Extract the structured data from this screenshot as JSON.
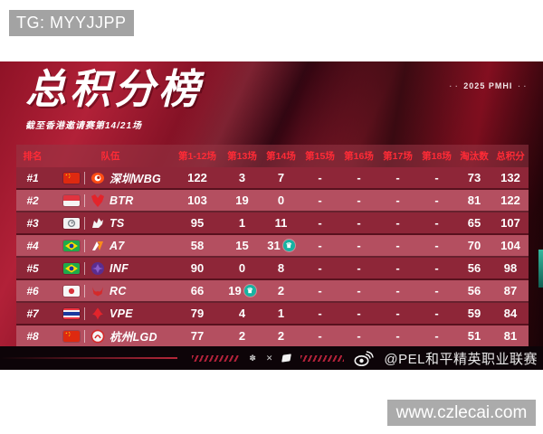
{
  "watermarks": {
    "tg": "TG: MYYJJPP",
    "site": "www.czlecai.com",
    "weibo_handle": "@PEL和平精英职业联赛"
  },
  "header": {
    "title": "总积分榜",
    "subtitle": "截至香港邀请赛第14/21场",
    "event_tag": "2025 PMHI"
  },
  "table": {
    "columns": [
      "排名",
      "队伍",
      "第1-12场",
      "第13场",
      "第14场",
      "第15场",
      "第16场",
      "第17场",
      "第18场",
      "淘汰数",
      "总积分"
    ],
    "rows": [
      {
        "rank": "#1",
        "flag": "cn",
        "logo": "wbg",
        "team": "深圳WBG",
        "scores": [
          "122",
          "3",
          "7",
          "-",
          "-",
          "-",
          "-"
        ],
        "kills": "73",
        "total": "132",
        "badge_index": null
      },
      {
        "rank": "#2",
        "flag": "id",
        "logo": "btr",
        "team": "BTR",
        "scores": [
          "103",
          "19",
          "0",
          "-",
          "-",
          "-",
          "-"
        ],
        "kills": "81",
        "total": "122",
        "badge_index": null
      },
      {
        "rank": "#3",
        "flag": "ts",
        "logo": "ts",
        "team": "TS",
        "scores": [
          "95",
          "1",
          "11",
          "-",
          "-",
          "-",
          "-"
        ],
        "kills": "65",
        "total": "107",
        "badge_index": null
      },
      {
        "rank": "#4",
        "flag": "br",
        "logo": "a7",
        "team": "A7",
        "scores": [
          "58",
          "15",
          "31",
          "-",
          "-",
          "-",
          "-"
        ],
        "kills": "70",
        "total": "104",
        "badge_index": 2
      },
      {
        "rank": "#5",
        "flag": "br",
        "logo": "inf",
        "team": "INF",
        "scores": [
          "90",
          "0",
          "8",
          "-",
          "-",
          "-",
          "-"
        ],
        "kills": "56",
        "total": "98",
        "badge_index": null
      },
      {
        "rank": "#6",
        "flag": "jp",
        "logo": "rc",
        "team": "RC",
        "scores": [
          "66",
          "19",
          "2",
          "-",
          "-",
          "-",
          "-"
        ],
        "kills": "56",
        "total": "87",
        "badge_index": 1
      },
      {
        "rank": "#7",
        "flag": "th",
        "logo": "vpe",
        "team": "VPE",
        "scores": [
          "79",
          "4",
          "1",
          "-",
          "-",
          "-",
          "-"
        ],
        "kills": "59",
        "total": "84",
        "badge_index": null
      },
      {
        "rank": "#8",
        "flag": "cn",
        "logo": "lgd",
        "team": "杭州LGD",
        "scores": [
          "77",
          "2",
          "2",
          "-",
          "-",
          "-",
          "-"
        ],
        "kills": "51",
        "total": "81",
        "badge_index": null
      }
    ],
    "badge_meaning": "chicken-dinner-win",
    "badge_glyph": "♛"
  },
  "colors": {
    "accent_header_text": "#ff2b36",
    "row_dark": "#8e2638",
    "row_light": "#b44f60",
    "badge": "#17b3a2",
    "strip_bg": "#0d0408",
    "tg_box": "#a3a3a3",
    "site_box": "#ababab"
  }
}
